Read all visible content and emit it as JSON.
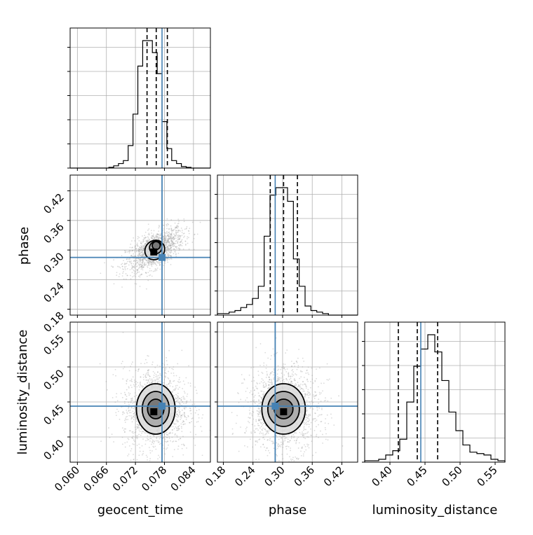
{
  "chart_data": {
    "type": "corner",
    "parameters": [
      "geocent_time",
      "phase",
      "luminosity_distance"
    ],
    "axis_labels": {
      "x": [
        "geocent_time",
        "phase",
        "luminosity_distance"
      ],
      "y": [
        "phase",
        "luminosity_distance"
      ]
    },
    "grid": true,
    "colors": {
      "truth": "#4682b4",
      "hist": "#000000",
      "quantile": "#000000",
      "scatter": "#999999"
    },
    "ranges": {
      "geocent_time": [
        0.0585,
        0.0875
      ],
      "phase": [
        0.168,
        0.452
      ],
      "luminosity_distance": [
        0.364,
        0.564
      ]
    },
    "ticks": {
      "geocent_time": [
        "0.060",
        "0.066",
        "0.072",
        "0.078",
        "0.084"
      ],
      "phase": [
        "0.18",
        "0.24",
        "0.30",
        "0.36",
        "0.42"
      ],
      "luminosity_distance": [
        "0.40",
        "0.45",
        "0.50",
        "0.55"
      ]
    },
    "tick_values": {
      "geocent_time": [
        0.06,
        0.066,
        0.072,
        0.078,
        0.084
      ],
      "phase": [
        0.18,
        0.24,
        0.3,
        0.36,
        0.42
      ],
      "luminosity_distance": [
        0.4,
        0.45,
        0.5,
        0.55
      ]
    },
    "truths": {
      "geocent_time": 0.0775,
      "phase": 0.285,
      "luminosity_distance": 0.444
    },
    "quantiles": {
      "geocent_time": [
        0.0744,
        0.0763,
        0.0786
      ],
      "phase": [
        0.275,
        0.302,
        0.33
      ],
      "luminosity_distance": [
        0.412,
        0.439,
        0.468
      ]
    },
    "histograms": {
      "geocent_time": {
        "range": [
          0.0585,
          0.0875
        ],
        "counts": [
          0,
          0,
          0,
          0,
          0,
          0,
          0,
          0,
          0.5,
          1.5,
          3,
          5,
          15,
          36,
          68,
          85,
          85,
          77,
          63,
          31,
          13,
          5,
          3,
          1,
          0.5,
          0,
          0,
          0,
          0
        ]
      },
      "phase": {
        "range": [
          0.168,
          0.452
        ],
        "counts": [
          1,
          1,
          2,
          3,
          5,
          7,
          11,
          19,
          52,
          79,
          84,
          84,
          75,
          37,
          19,
          6,
          3,
          2,
          1,
          0,
          0,
          0,
          0,
          0
        ]
      },
      "luminosity_distance": {
        "range": [
          0.364,
          0.564
        ],
        "counts": [
          1,
          1,
          2,
          5,
          8,
          16,
          42,
          67,
          79,
          89,
          77,
          57,
          35,
          22,
          12,
          7,
          6,
          5,
          2,
          1
        ]
      }
    },
    "scatter_2d": [
      {
        "x": "geocent_time",
        "y": "phase",
        "peak": [
          0.0758,
          0.296
        ],
        "contour_centers": [
          [
            0.076,
            0.3
          ],
          [
            0.0762,
            0.305
          ],
          [
            0.0763,
            0.309
          ]
        ],
        "contour_half_widths": [
          [
            0.0035,
            0.026
          ],
          [
            0.0023,
            0.016
          ],
          [
            0.0015,
            0.01
          ]
        ],
        "correlation": 0.6
      },
      {
        "x": "geocent_time",
        "y": "luminosity_distance",
        "peak": [
          0.0758,
          0.436
        ],
        "contour_centers": [
          [
            0.0762,
            0.44
          ],
          [
            0.0762,
            0.44
          ],
          [
            0.0762,
            0.44
          ]
        ],
        "contour_half_widths": [
          [
            0.004,
            0.036
          ],
          [
            0.0028,
            0.025
          ],
          [
            0.0017,
            0.014
          ]
        ],
        "correlation": 0.0
      },
      {
        "x": "phase",
        "y": "luminosity_distance",
        "peak": [
          0.302,
          0.436
        ],
        "contour_centers": [
          [
            0.302,
            0.44
          ],
          [
            0.302,
            0.44
          ],
          [
            0.302,
            0.44
          ]
        ],
        "contour_half_widths": [
          [
            0.044,
            0.036
          ],
          [
            0.032,
            0.025
          ],
          [
            0.019,
            0.014
          ]
        ],
        "correlation": 0.0
      }
    ]
  }
}
